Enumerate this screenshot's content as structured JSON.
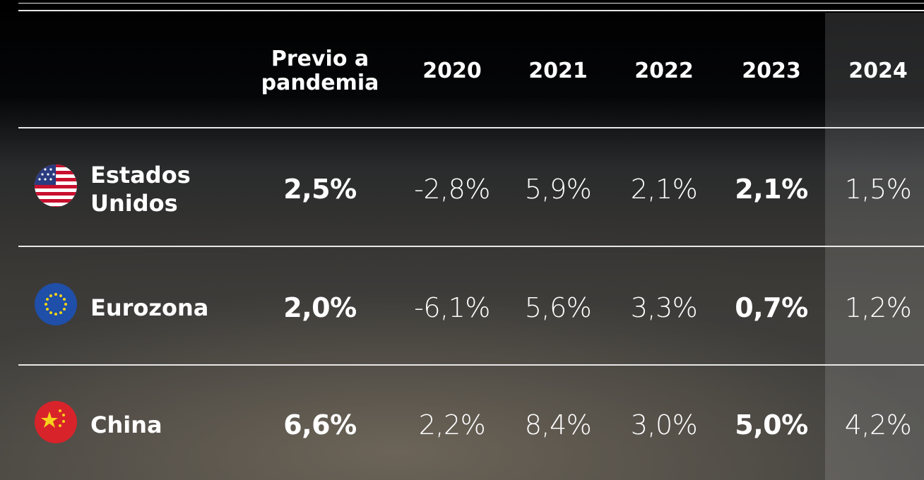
{
  "table": {
    "columns": [
      "Previo a pandemia",
      "2020",
      "2021",
      "2022",
      "2023",
      "2024"
    ],
    "rows": [
      {
        "country": "Estados Unidos",
        "values": [
          "2,5%",
          "-2,8%",
          "5,9%",
          "2,1%",
          "2,1%",
          "1,5%"
        ]
      },
      {
        "country": "Eurozona",
        "values": [
          "2,0%",
          "-6,1%",
          "5,6%",
          "3,3%",
          "0,7%",
          "1,2%"
        ]
      },
      {
        "country": "China",
        "values": [
          "6,6%",
          "2,2%",
          "8,4%",
          "3,0%",
          "5,0%",
          "4,2%"
        ]
      }
    ]
  }
}
